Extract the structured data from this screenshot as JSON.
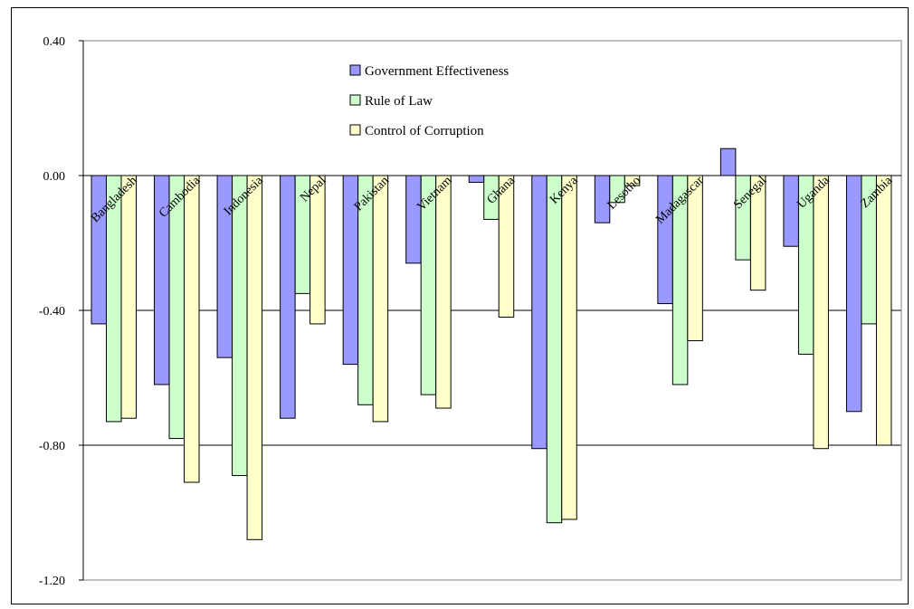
{
  "chart_data": {
    "type": "bar",
    "categories": [
      "Bangladesh",
      "Cambodia",
      "Indonesia",
      "Nepal",
      "Pakistan",
      "Vietnam",
      "Ghana",
      "Kenya",
      "Lesotho",
      "Madagascar",
      "Senegal",
      "Uganda",
      "Zambia"
    ],
    "series": [
      {
        "name": "Government Effectiveness",
        "color": "#9999ff",
        "values": [
          -0.44,
          -0.62,
          -0.54,
          -0.72,
          -0.56,
          -0.26,
          -0.02,
          -0.81,
          -0.14,
          -0.38,
          0.08,
          -0.21,
          -0.7
        ]
      },
      {
        "name": "Rule of Law",
        "color": "#ccffcc",
        "values": [
          -0.73,
          -0.78,
          -0.89,
          -0.35,
          -0.68,
          -0.65,
          -0.13,
          -1.03,
          -0.08,
          -0.62,
          -0.25,
          -0.53,
          -0.44
        ]
      },
      {
        "name": "Control of Corruption",
        "color": "#ffffcc",
        "values": [
          -0.72,
          -0.91,
          -1.08,
          -0.44,
          -0.73,
          -0.69,
          -0.42,
          -1.02,
          -0.03,
          -0.49,
          -0.34,
          -0.81,
          -0.8
        ]
      }
    ],
    "y_ticks": [
      "0.40",
      "0.00",
      "-0.40",
      "-0.80",
      "-1.20"
    ],
    "ylim": [
      -1.2,
      0.4
    ],
    "gridlines": true,
    "legend_position": "top-center"
  }
}
